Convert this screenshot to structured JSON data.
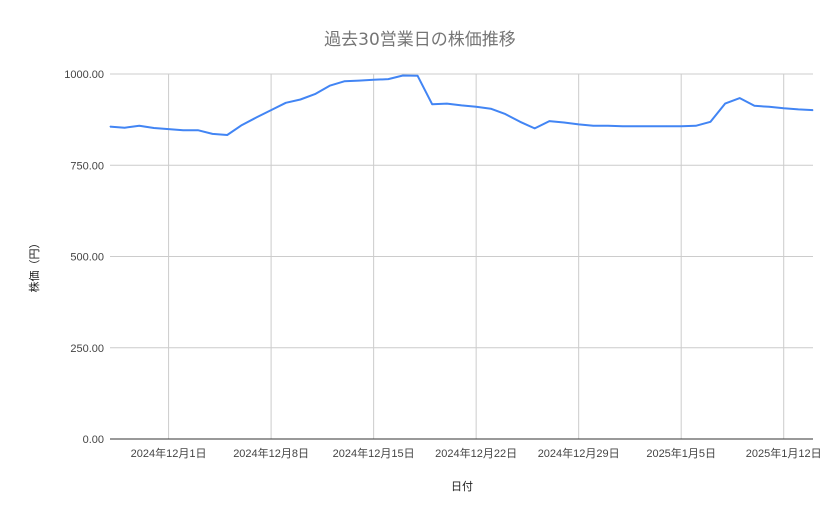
{
  "chart_data": {
    "type": "line",
    "title": "過去30営業日の株価推移",
    "xlabel": "日付",
    "ylabel": "株価（円）",
    "ylim": [
      0,
      1000
    ],
    "xlim": [
      "2024-11-27",
      "2025-01-14"
    ],
    "yticks": [
      0,
      250,
      500,
      750,
      1000
    ],
    "ytick_labels": [
      "0.00",
      "250.00",
      "500.00",
      "750.00",
      "1000.00"
    ],
    "xticks": [
      "2024-12-01",
      "2024-12-08",
      "2024-12-15",
      "2024-12-22",
      "2024-12-29",
      "2025-01-05",
      "2025-01-12"
    ],
    "xtick_labels": [
      "2024年12月1日",
      "2024年12月8日",
      "2024年12月15日",
      "2024年12月22日",
      "2024年12月29日",
      "2025年1月5日",
      "2025年1月12日"
    ],
    "grid": true,
    "line_color": "#4285f4",
    "x": [
      "2024-11-27",
      "2024-11-28",
      "2024-11-29",
      "2024-11-30",
      "2024-12-01",
      "2024-12-02",
      "2024-12-03",
      "2024-12-04",
      "2024-12-05",
      "2024-12-06",
      "2024-12-07",
      "2024-12-08",
      "2024-12-09",
      "2024-12-10",
      "2024-12-11",
      "2024-12-12",
      "2024-12-13",
      "2024-12-14",
      "2024-12-15",
      "2024-12-16",
      "2024-12-17",
      "2024-12-18",
      "2024-12-19",
      "2024-12-20",
      "2024-12-21",
      "2024-12-22",
      "2024-12-23",
      "2024-12-24",
      "2024-12-25",
      "2024-12-26",
      "2024-12-27",
      "2024-12-28",
      "2024-12-29",
      "2024-12-30",
      "2024-12-31",
      "2025-01-01",
      "2025-01-02",
      "2025-01-03",
      "2025-01-04",
      "2025-01-05",
      "2025-01-06",
      "2025-01-07",
      "2025-01-08",
      "2025-01-09",
      "2025-01-10",
      "2025-01-11",
      "2025-01-12",
      "2025-01-13",
      "2025-01-14"
    ],
    "values": [
      856,
      853,
      858,
      852,
      849,
      846,
      846,
      836,
      833,
      860,
      881,
      901,
      921,
      930,
      945,
      968,
      980,
      982,
      984,
      986,
      996,
      995,
      917,
      919,
      914,
      910,
      905,
      890,
      869,
      851,
      871,
      867,
      862,
      858,
      858,
      857,
      857,
      857,
      857,
      857,
      858,
      869,
      919,
      934,
      913,
      910,
      906,
      903,
      901
    ]
  }
}
